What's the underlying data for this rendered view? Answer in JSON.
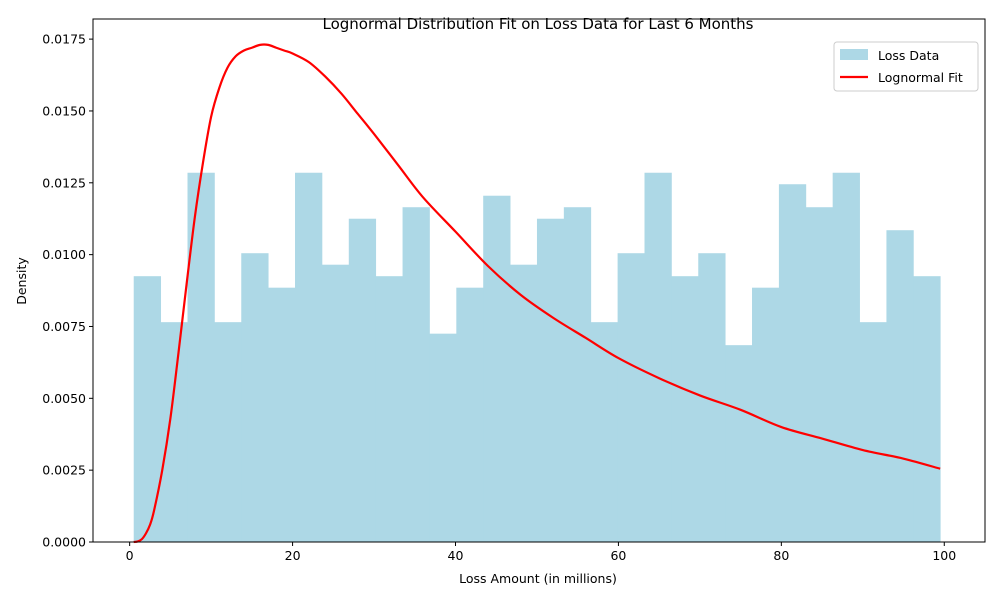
{
  "chart_data": {
    "type": "bar",
    "title": "Lognormal Distribution Fit on Loss Data for Last 6 Months",
    "xlabel": "Loss Amount (in millions)",
    "ylabel": "Density",
    "xlim": [
      -4.5,
      105
    ],
    "ylim": [
      0,
      0.0182
    ],
    "x_ticks": [
      0,
      20,
      40,
      60,
      80,
      100
    ],
    "y_ticks": [
      0.0,
      0.0025,
      0.005,
      0.0075,
      0.01,
      0.0125,
      0.015,
      0.0175
    ],
    "x_tick_labels": [
      "0",
      "20",
      "40",
      "60",
      "80",
      "100"
    ],
    "y_tick_labels": [
      "0.0000",
      "0.0025",
      "0.0050",
      "0.0075",
      "0.0100",
      "0.0125",
      "0.0150",
      "0.0175"
    ],
    "grid": false,
    "legend_position": "top-right",
    "histogram": {
      "name": "Loss Data",
      "color": "#add8e6",
      "bin_edges": [
        0.5,
        3.8,
        7.1,
        10.4,
        13.7,
        17.0,
        20.3,
        23.6,
        26.9,
        30.2,
        33.5,
        36.8,
        40.1,
        43.4,
        46.7,
        50.0,
        53.3,
        56.6,
        59.9,
        63.2,
        66.5,
        69.8,
        73.1,
        76.4,
        79.7,
        83.0,
        86.3,
        89.6,
        92.9,
        96.2,
        99.5
      ],
      "densities": [
        0.00925,
        0.00765,
        0.01285,
        0.00765,
        0.01005,
        0.00885,
        0.01285,
        0.00965,
        0.01125,
        0.00925,
        0.01165,
        0.00725,
        0.00885,
        0.01205,
        0.00965,
        0.01125,
        0.01165,
        0.00765,
        0.01005,
        0.01285,
        0.00925,
        0.01005,
        0.00685,
        0.00885,
        0.01245,
        0.01165,
        0.01285,
        0.00765,
        0.01085,
        0.00925
      ]
    },
    "fit_curve": {
      "name": "Lognormal Fit",
      "color": "#ff0000",
      "x": [
        0.5,
        1,
        1.5,
        2,
        2.5,
        3,
        4,
        5,
        6,
        7,
        8,
        9,
        10,
        11,
        12,
        13,
        14,
        15,
        16,
        17,
        18,
        19,
        20,
        22,
        24,
        26,
        28,
        30,
        33,
        36,
        40,
        44,
        48,
        52,
        56,
        60,
        65,
        70,
        75,
        80,
        85,
        90,
        95,
        99.5
      ],
      "y": [
        0.0,
        2e-05,
        0.0001,
        0.0003,
        0.0006,
        0.0011,
        0.0025,
        0.0043,
        0.0066,
        0.009,
        0.0113,
        0.0132,
        0.0148,
        0.0158,
        0.0165,
        0.0169,
        0.0171,
        0.0172,
        0.0173,
        0.0173,
        0.0172,
        0.0171,
        0.017,
        0.0167,
        0.0162,
        0.0156,
        0.0149,
        0.0142,
        0.0131,
        0.012,
        0.0108,
        0.0096,
        0.0086,
        0.0078,
        0.0071,
        0.0064,
        0.0057,
        0.0051,
        0.0046,
        0.004,
        0.0036,
        0.0032,
        0.0029,
        0.00255
      ]
    }
  }
}
